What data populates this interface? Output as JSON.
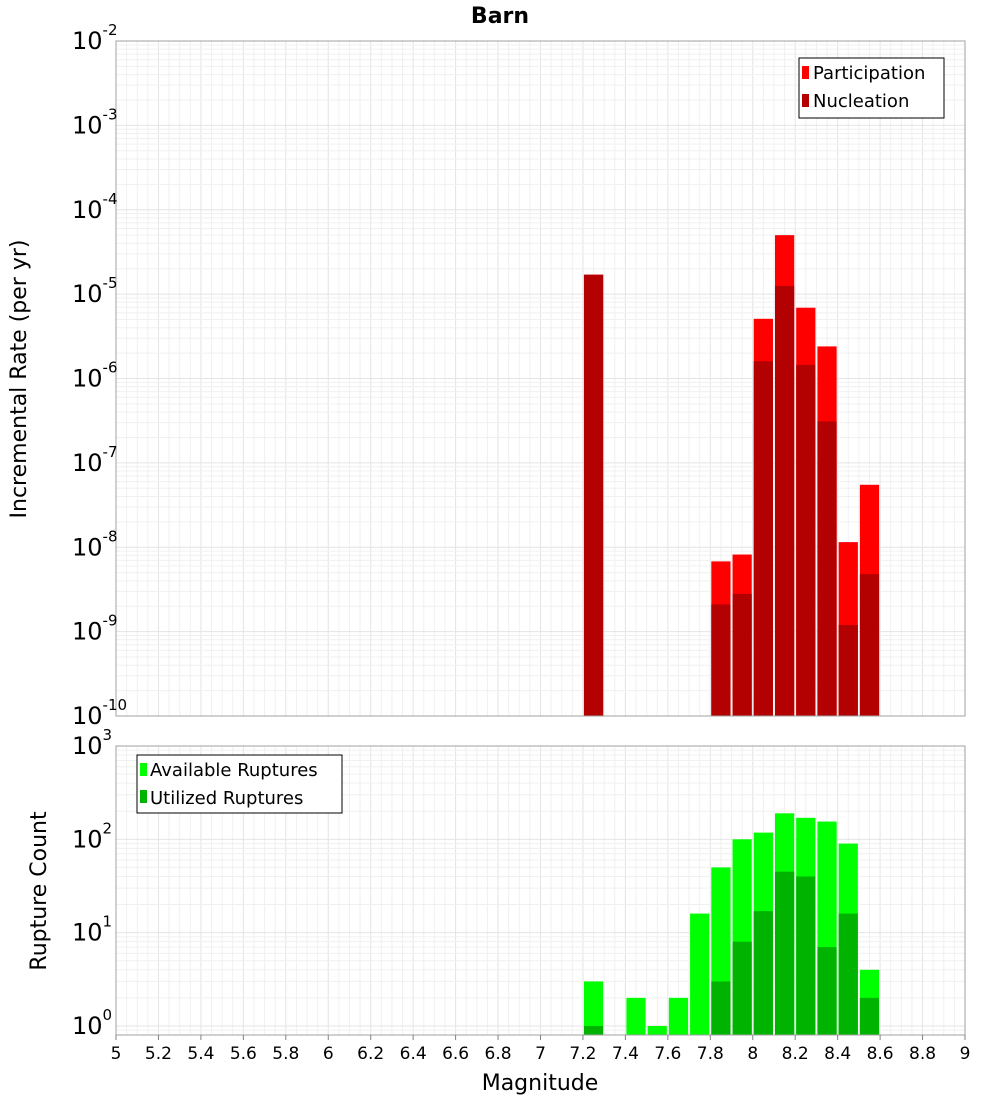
{
  "chart_data": [
    {
      "type": "bar",
      "title": "Barn",
      "xlabel": "",
      "ylabel": "Incremental Rate (per yr)",
      "yscale": "log",
      "ylim": [
        1e-10,
        0.01
      ],
      "xlim": [
        5,
        9
      ],
      "bar_width": 0.1,
      "grid": true,
      "legend_position": "top-right",
      "y_ticks": [
        {
          "base": "10",
          "exp": "-10"
        },
        {
          "base": "10",
          "exp": "-9"
        },
        {
          "base": "10",
          "exp": "-8"
        },
        {
          "base": "10",
          "exp": "-7"
        },
        {
          "base": "10",
          "exp": "-6"
        },
        {
          "base": "10",
          "exp": "-5"
        },
        {
          "base": "10",
          "exp": "-4"
        },
        {
          "base": "10",
          "exp": "-3"
        },
        {
          "base": "10",
          "exp": "-2"
        }
      ],
      "series": [
        {
          "name": "Participation",
          "color": "#ff0000",
          "x": [
            7.25,
            7.85,
            7.95,
            8.05,
            8.15,
            8.25,
            8.35,
            8.45,
            8.55
          ],
          "values": [
            1.7e-05,
            6.8e-09,
            8.2e-09,
            5.1e-06,
            5e-05,
            6.9e-06,
            2.4e-06,
            1.15e-08,
            5.5e-08
          ]
        },
        {
          "name": "Nucleation",
          "color": "#b30000",
          "x": [
            7.25,
            7.85,
            7.95,
            8.05,
            8.15,
            8.25,
            8.35,
            8.45,
            8.55
          ],
          "values": [
            1.7e-05,
            2.1e-09,
            2.8e-09,
            1.6e-06,
            1.25e-05,
            1.45e-06,
            3.1e-07,
            1.2e-09,
            4.8e-09
          ]
        }
      ]
    },
    {
      "type": "bar",
      "title": "",
      "xlabel": "Magnitude",
      "ylabel": "Rupture Count",
      "yscale": "log",
      "ylim": [
        0.8,
        1000
      ],
      "xlim": [
        5,
        9
      ],
      "bar_width": 0.1,
      "grid": true,
      "legend_position": "top-left",
      "x_ticks": [
        "5",
        "5.2",
        "5.4",
        "5.6",
        "5.8",
        "6",
        "6.2",
        "6.4",
        "6.6",
        "6.8",
        "7",
        "7.2",
        "7.4",
        "7.6",
        "7.8",
        "8",
        "8.2",
        "8.4",
        "8.6",
        "8.8",
        "9"
      ],
      "y_ticks": [
        {
          "base": "10",
          "exp": "0"
        },
        {
          "base": "10",
          "exp": "1"
        },
        {
          "base": "10",
          "exp": "2"
        },
        {
          "base": "10",
          "exp": "3"
        }
      ],
      "series": [
        {
          "name": "Available Ruptures",
          "color": "#00ff00",
          "x": [
            7.25,
            7.45,
            7.55,
            7.65,
            7.75,
            7.85,
            7.95,
            8.05,
            8.15,
            8.25,
            8.35,
            8.45,
            8.55
          ],
          "values": [
            3,
            2,
            1,
            2,
            16,
            50,
            100,
            118,
            190,
            170,
            155,
            90,
            4
          ]
        },
        {
          "name": "Utilized Ruptures",
          "color": "#00b300",
          "x": [
            7.25,
            7.85,
            7.95,
            8.05,
            8.15,
            8.25,
            8.35,
            8.45,
            8.55
          ],
          "values": [
            1,
            3,
            8,
            17,
            45,
            40,
            7,
            16,
            2
          ]
        }
      ]
    }
  ]
}
